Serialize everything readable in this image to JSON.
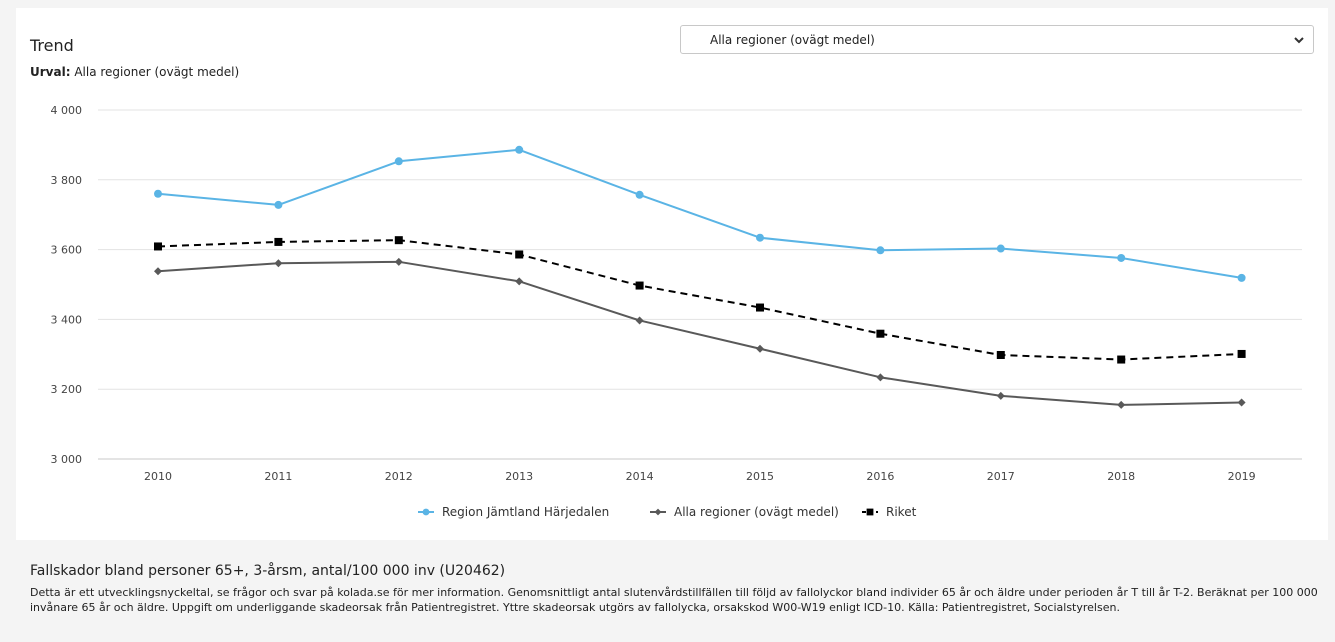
{
  "header": {
    "title": "Trend",
    "urval_label": "Urval:",
    "urval_value": "Alla regioner (ovägt medel)"
  },
  "region_select": {
    "selected": "Alla regioner (ovägt medel)"
  },
  "chart_data": {
    "type": "line",
    "x": [
      "2010",
      "2011",
      "2012",
      "2013",
      "2014",
      "2015",
      "2016",
      "2017",
      "2018",
      "2019"
    ],
    "ylim": [
      3000,
      4000
    ],
    "yticks": [
      3000,
      3200,
      3400,
      3600,
      3800,
      4000
    ],
    "ytick_labels": [
      "3 000",
      "3 200",
      "3 400",
      "3 600",
      "3 800",
      "4 000"
    ],
    "grid": true,
    "legend_position": "bottom",
    "series": [
      {
        "name": "Region Jämtland Härjedalen",
        "color": "#5ab4e5",
        "marker": "circle",
        "dash": "solid",
        "values": [
          3760,
          3728,
          3853,
          3886,
          3757,
          3634,
          3598,
          3603,
          3576,
          3519
        ]
      },
      {
        "name": "Alla regioner (ovägt medel)",
        "color": "#595959",
        "marker": "diamond",
        "dash": "solid",
        "values": [
          3538,
          3561,
          3565,
          3509,
          3397,
          3316,
          3234,
          3181,
          3155,
          3162
        ]
      },
      {
        "name": "Riket",
        "color": "#000000",
        "marker": "square",
        "dash": "dashed",
        "values": [
          3609,
          3622,
          3627,
          3586,
          3497,
          3434,
          3359,
          3298,
          3285,
          3301
        ]
      }
    ]
  },
  "description": {
    "title": "Fallskador bland personer 65+, 3-årsm, antal/100 000 inv (U20462)",
    "text": "Detta är ett utvecklingsnyckeltal, se frågor och svar på kolada.se för mer information. Genomsnittligt antal slutenvårdstillfällen till följd av fallolyckor bland individer 65 år och äldre under perioden år T till år T-2. Beräknat per 100 000 invånare 65 år och äldre. Uppgift om underliggande skadeorsak från Patientregistret. Yttre skadeorsak utgörs av fallolycka, orsakskod W00-W19 enligt ICD-10. Källa: Patientregistret, Socialstyrelsen."
  }
}
